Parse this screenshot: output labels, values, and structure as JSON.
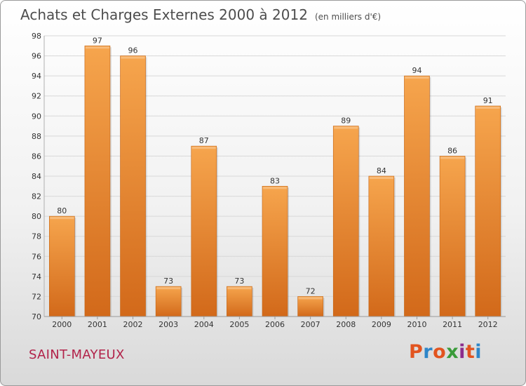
{
  "header": {
    "title": "Achats et Charges Externes 2000 à 2012",
    "unit": "(en milliers d'€)"
  },
  "footer": {
    "commune": "SAINT-MAYEUX",
    "brand": "Proxiti",
    "brand_colors": [
      "#e2541f",
      "#2e86c8",
      "#e2541f",
      "#3a9b3a",
      "#8c2d8c",
      "#e2541f",
      "#2e86c8"
    ]
  },
  "colors": {
    "bar_light": "#f6a54d",
    "bar_dark": "#d2691a",
    "grid": "#d8d8d8",
    "axis_text": "#333333"
  },
  "chart_data": {
    "type": "bar",
    "categories": [
      "2000",
      "2001",
      "2002",
      "2003",
      "2004",
      "2005",
      "2006",
      "2007",
      "2008",
      "2009",
      "2010",
      "2011",
      "2012"
    ],
    "values": [
      80,
      97,
      96,
      73,
      87,
      73,
      83,
      72,
      89,
      84,
      94,
      86,
      91
    ],
    "ylim": [
      70,
      98
    ],
    "yticks": [
      70,
      72,
      74,
      76,
      78,
      80,
      82,
      84,
      86,
      88,
      90,
      92,
      94,
      96,
      98
    ],
    "grid": true,
    "value_labels": true
  }
}
